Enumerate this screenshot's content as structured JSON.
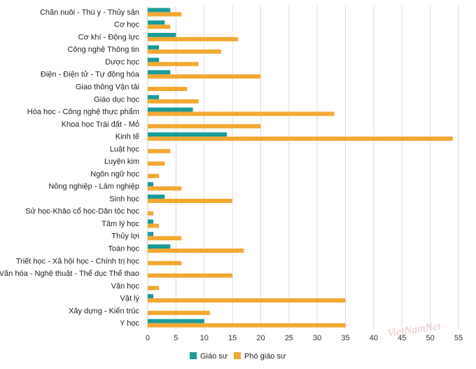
{
  "chart_data": {
    "type": "bar",
    "orientation": "horizontal",
    "categories": [
      "Chăn nuôi - Thú y - Thủy sản",
      "Cơ học",
      "Cơ khí - Động lực",
      "Công nghệ Thông tin",
      "Dược học",
      "Điện - Điện tử - Tự động hóa",
      "Giao thông Vận tải",
      "Giáo dục học",
      "Hóa học - Công nghệ thực phẩm",
      "Khoa học Trái đất - Mỏ",
      "Kinh tế",
      "Luật học",
      "Luyện kim",
      "Ngôn ngữ học",
      "Nông nghiệp - Lâm nghiệp",
      "Sinh học",
      "Sử học-Khảo cổ học-Dân tộc học",
      "Tâm lý học",
      "Thủy lợi",
      "Toán học",
      "Triết học - Xã hội học - Chính trị học",
      "Văn hóa - Nghệ thuật - Thể dục Thể thao",
      "Văn học",
      "Vật lý",
      "Xây dựng - Kiến trúc",
      "Y học"
    ],
    "series": [
      {
        "name": "Giáo sư",
        "color": "#1a9c98",
        "values": [
          4,
          3,
          5,
          2,
          2,
          4,
          0,
          2,
          8,
          0,
          14,
          0,
          0,
          0,
          1,
          3,
          0,
          1,
          1,
          4,
          0,
          0,
          0,
          1,
          0,
          10
        ]
      },
      {
        "name": "Phó giáo sư",
        "color": "#f2a832",
        "values": [
          6,
          4,
          16,
          13,
          9,
          20,
          7,
          9,
          33,
          20,
          54,
          4,
          3,
          2,
          6,
          15,
          1,
          2,
          6,
          17,
          6,
          15,
          2,
          35,
          11,
          35
        ]
      }
    ],
    "xlim": [
      0,
      55
    ],
    "xticks": [
      "0",
      "5",
      "10",
      "15",
      "20",
      "25",
      "30",
      "35",
      "40",
      "45",
      "50",
      "55"
    ],
    "grid": true,
    "legend": "bottom",
    "title": "",
    "xlabel": "",
    "ylabel": ""
  },
  "watermark": "VietNamNet"
}
